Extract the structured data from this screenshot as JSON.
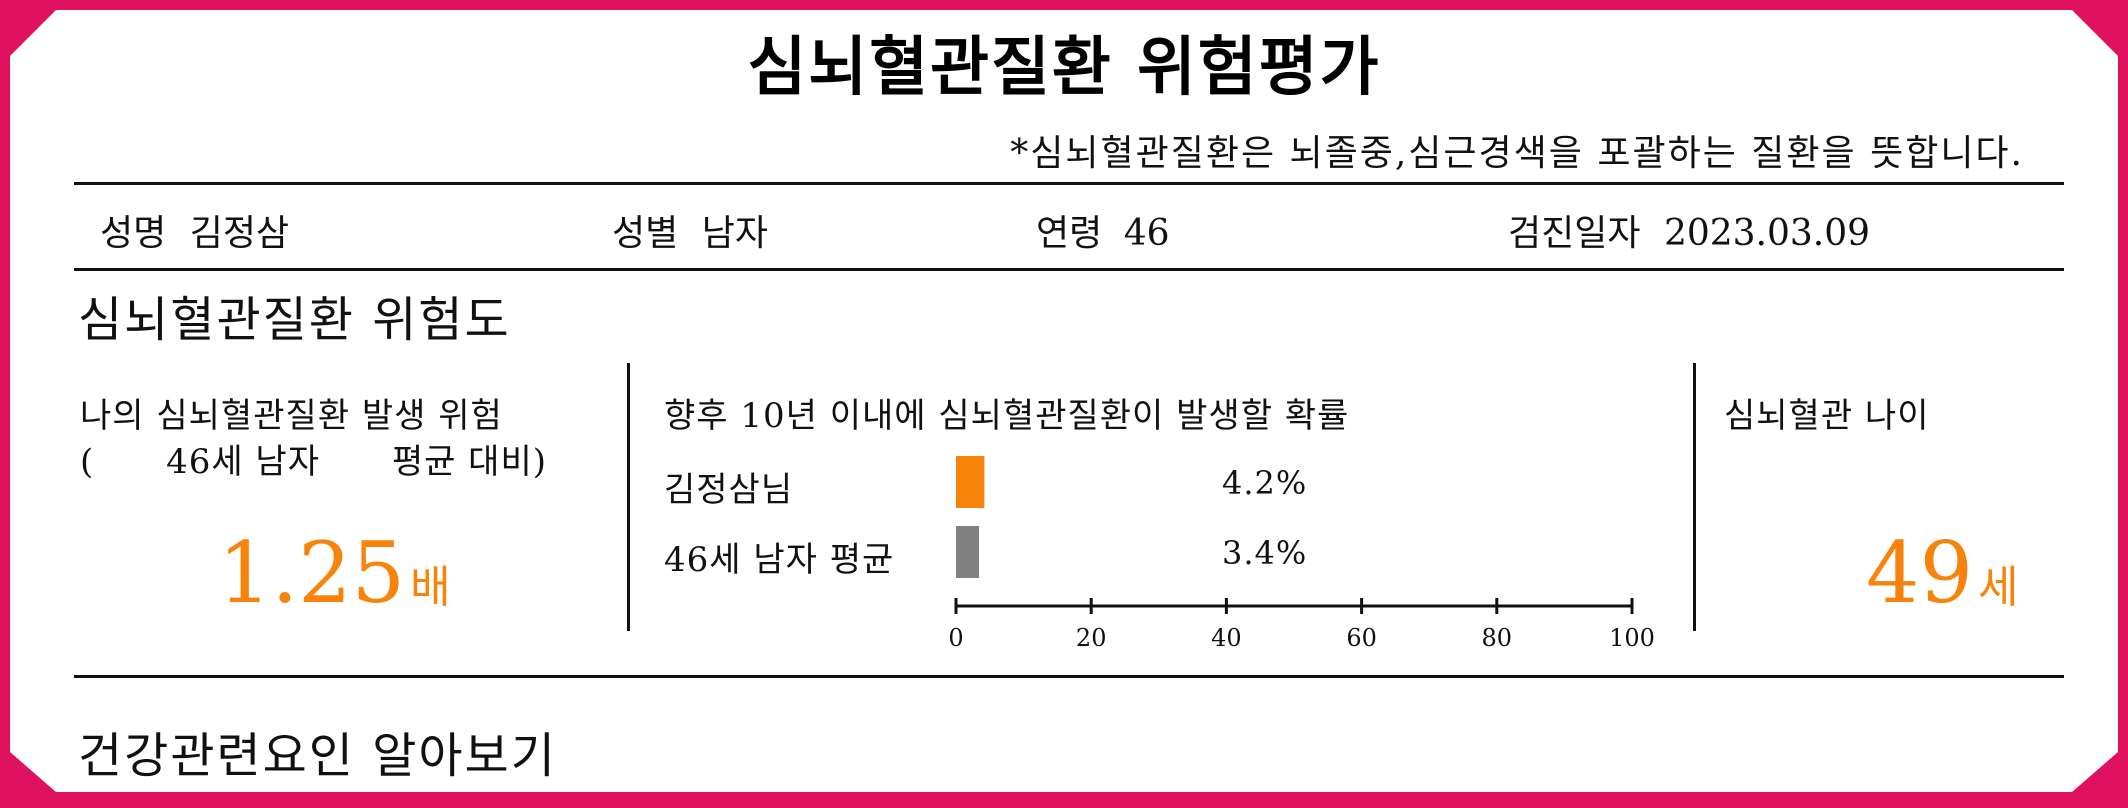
{
  "title": "심뇌혈관질환 위험평가",
  "note": "*심뇌혈관질환은 뇌졸중,심근경색을 포괄하는 질환을 뜻합니다.",
  "patient": {
    "name_label": "성명",
    "name": "김정삼",
    "sex_label": "성별",
    "sex": "남자",
    "age_label": "연령",
    "age": "46",
    "date_label": "검진일자",
    "date": "2023.03.09"
  },
  "risk_section": {
    "title": "심뇌혈관질환 위험도",
    "relative": {
      "heading_line1": "나의 심뇌혈관질환 발생 위험",
      "heading_open": "(",
      "heading_group": "46세 남자",
      "heading_avg": "평균 대비)",
      "value": "1.25",
      "unit": "배"
    },
    "probability": {
      "heading": "향후 10년 이내에 심뇌혈관질환이 발생할 확률",
      "rows": [
        {
          "label": "김정삼님",
          "value_label": "4.2%",
          "color": "#f7830a"
        },
        {
          "label": "46세 남자 평균",
          "value_label": "3.4%",
          "color": "#808080"
        }
      ]
    },
    "vascular_age": {
      "heading": "심뇌혈관 나이",
      "value": "49",
      "unit": "세"
    }
  },
  "chart_data": {
    "type": "bar",
    "orientation": "horizontal",
    "categories": [
      "김정삼님",
      "46세 남자 평균"
    ],
    "values": [
      4.2,
      3.4
    ],
    "value_labels": [
      "4.2%",
      "3.4%"
    ],
    "colors": [
      "#f7830a",
      "#808080"
    ],
    "xlim": [
      0,
      100
    ],
    "xticks": [
      "0",
      "20",
      "40",
      "60",
      "80",
      "100"
    ],
    "grid": false,
    "title": "",
    "xlabel": "",
    "ylabel": ""
  },
  "next_section": {
    "title": "건강관련요인 알아보기"
  },
  "colors": {
    "frame": "#e0115f",
    "accent": "#f7830a",
    "average_bar": "#808080"
  }
}
